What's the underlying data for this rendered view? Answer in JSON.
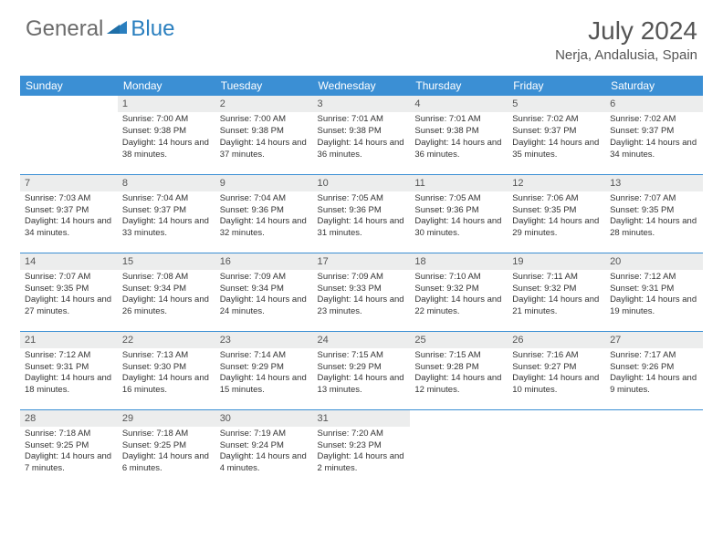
{
  "logo": {
    "text1": "General",
    "text2": "Blue"
  },
  "title": "July 2024",
  "location": "Nerja, Andalusia, Spain",
  "day_headers": [
    "Sunday",
    "Monday",
    "Tuesday",
    "Wednesday",
    "Thursday",
    "Friday",
    "Saturday"
  ],
  "colors": {
    "header_bg": "#3b8fd4",
    "header_text": "#ffffff",
    "daynum_bg": "#eceded",
    "border": "#3b8fd4",
    "logo_gray": "#6b6b6b",
    "logo_blue": "#2a7fbf"
  },
  "weeks": [
    [
      null,
      {
        "n": "1",
        "sr": "7:00 AM",
        "ss": "9:38 PM",
        "dl": "14 hours and 38 minutes."
      },
      {
        "n": "2",
        "sr": "7:00 AM",
        "ss": "9:38 PM",
        "dl": "14 hours and 37 minutes."
      },
      {
        "n": "3",
        "sr": "7:01 AM",
        "ss": "9:38 PM",
        "dl": "14 hours and 36 minutes."
      },
      {
        "n": "4",
        "sr": "7:01 AM",
        "ss": "9:38 PM",
        "dl": "14 hours and 36 minutes."
      },
      {
        "n": "5",
        "sr": "7:02 AM",
        "ss": "9:37 PM",
        "dl": "14 hours and 35 minutes."
      },
      {
        "n": "6",
        "sr": "7:02 AM",
        "ss": "9:37 PM",
        "dl": "14 hours and 34 minutes."
      }
    ],
    [
      {
        "n": "7",
        "sr": "7:03 AM",
        "ss": "9:37 PM",
        "dl": "14 hours and 34 minutes."
      },
      {
        "n": "8",
        "sr": "7:04 AM",
        "ss": "9:37 PM",
        "dl": "14 hours and 33 minutes."
      },
      {
        "n": "9",
        "sr": "7:04 AM",
        "ss": "9:36 PM",
        "dl": "14 hours and 32 minutes."
      },
      {
        "n": "10",
        "sr": "7:05 AM",
        "ss": "9:36 PM",
        "dl": "14 hours and 31 minutes."
      },
      {
        "n": "11",
        "sr": "7:05 AM",
        "ss": "9:36 PM",
        "dl": "14 hours and 30 minutes."
      },
      {
        "n": "12",
        "sr": "7:06 AM",
        "ss": "9:35 PM",
        "dl": "14 hours and 29 minutes."
      },
      {
        "n": "13",
        "sr": "7:07 AM",
        "ss": "9:35 PM",
        "dl": "14 hours and 28 minutes."
      }
    ],
    [
      {
        "n": "14",
        "sr": "7:07 AM",
        "ss": "9:35 PM",
        "dl": "14 hours and 27 minutes."
      },
      {
        "n": "15",
        "sr": "7:08 AM",
        "ss": "9:34 PM",
        "dl": "14 hours and 26 minutes."
      },
      {
        "n": "16",
        "sr": "7:09 AM",
        "ss": "9:34 PM",
        "dl": "14 hours and 24 minutes."
      },
      {
        "n": "17",
        "sr": "7:09 AM",
        "ss": "9:33 PM",
        "dl": "14 hours and 23 minutes."
      },
      {
        "n": "18",
        "sr": "7:10 AM",
        "ss": "9:32 PM",
        "dl": "14 hours and 22 minutes."
      },
      {
        "n": "19",
        "sr": "7:11 AM",
        "ss": "9:32 PM",
        "dl": "14 hours and 21 minutes."
      },
      {
        "n": "20",
        "sr": "7:12 AM",
        "ss": "9:31 PM",
        "dl": "14 hours and 19 minutes."
      }
    ],
    [
      {
        "n": "21",
        "sr": "7:12 AM",
        "ss": "9:31 PM",
        "dl": "14 hours and 18 minutes."
      },
      {
        "n": "22",
        "sr": "7:13 AM",
        "ss": "9:30 PM",
        "dl": "14 hours and 16 minutes."
      },
      {
        "n": "23",
        "sr": "7:14 AM",
        "ss": "9:29 PM",
        "dl": "14 hours and 15 minutes."
      },
      {
        "n": "24",
        "sr": "7:15 AM",
        "ss": "9:29 PM",
        "dl": "14 hours and 13 minutes."
      },
      {
        "n": "25",
        "sr": "7:15 AM",
        "ss": "9:28 PM",
        "dl": "14 hours and 12 minutes."
      },
      {
        "n": "26",
        "sr": "7:16 AM",
        "ss": "9:27 PM",
        "dl": "14 hours and 10 minutes."
      },
      {
        "n": "27",
        "sr": "7:17 AM",
        "ss": "9:26 PM",
        "dl": "14 hours and 9 minutes."
      }
    ],
    [
      {
        "n": "28",
        "sr": "7:18 AM",
        "ss": "9:25 PM",
        "dl": "14 hours and 7 minutes."
      },
      {
        "n": "29",
        "sr": "7:18 AM",
        "ss": "9:25 PM",
        "dl": "14 hours and 6 minutes."
      },
      {
        "n": "30",
        "sr": "7:19 AM",
        "ss": "9:24 PM",
        "dl": "14 hours and 4 minutes."
      },
      {
        "n": "31",
        "sr": "7:20 AM",
        "ss": "9:23 PM",
        "dl": "14 hours and 2 minutes."
      },
      null,
      null,
      null
    ]
  ],
  "labels": {
    "sunrise": "Sunrise:",
    "sunset": "Sunset:",
    "daylight": "Daylight:"
  }
}
